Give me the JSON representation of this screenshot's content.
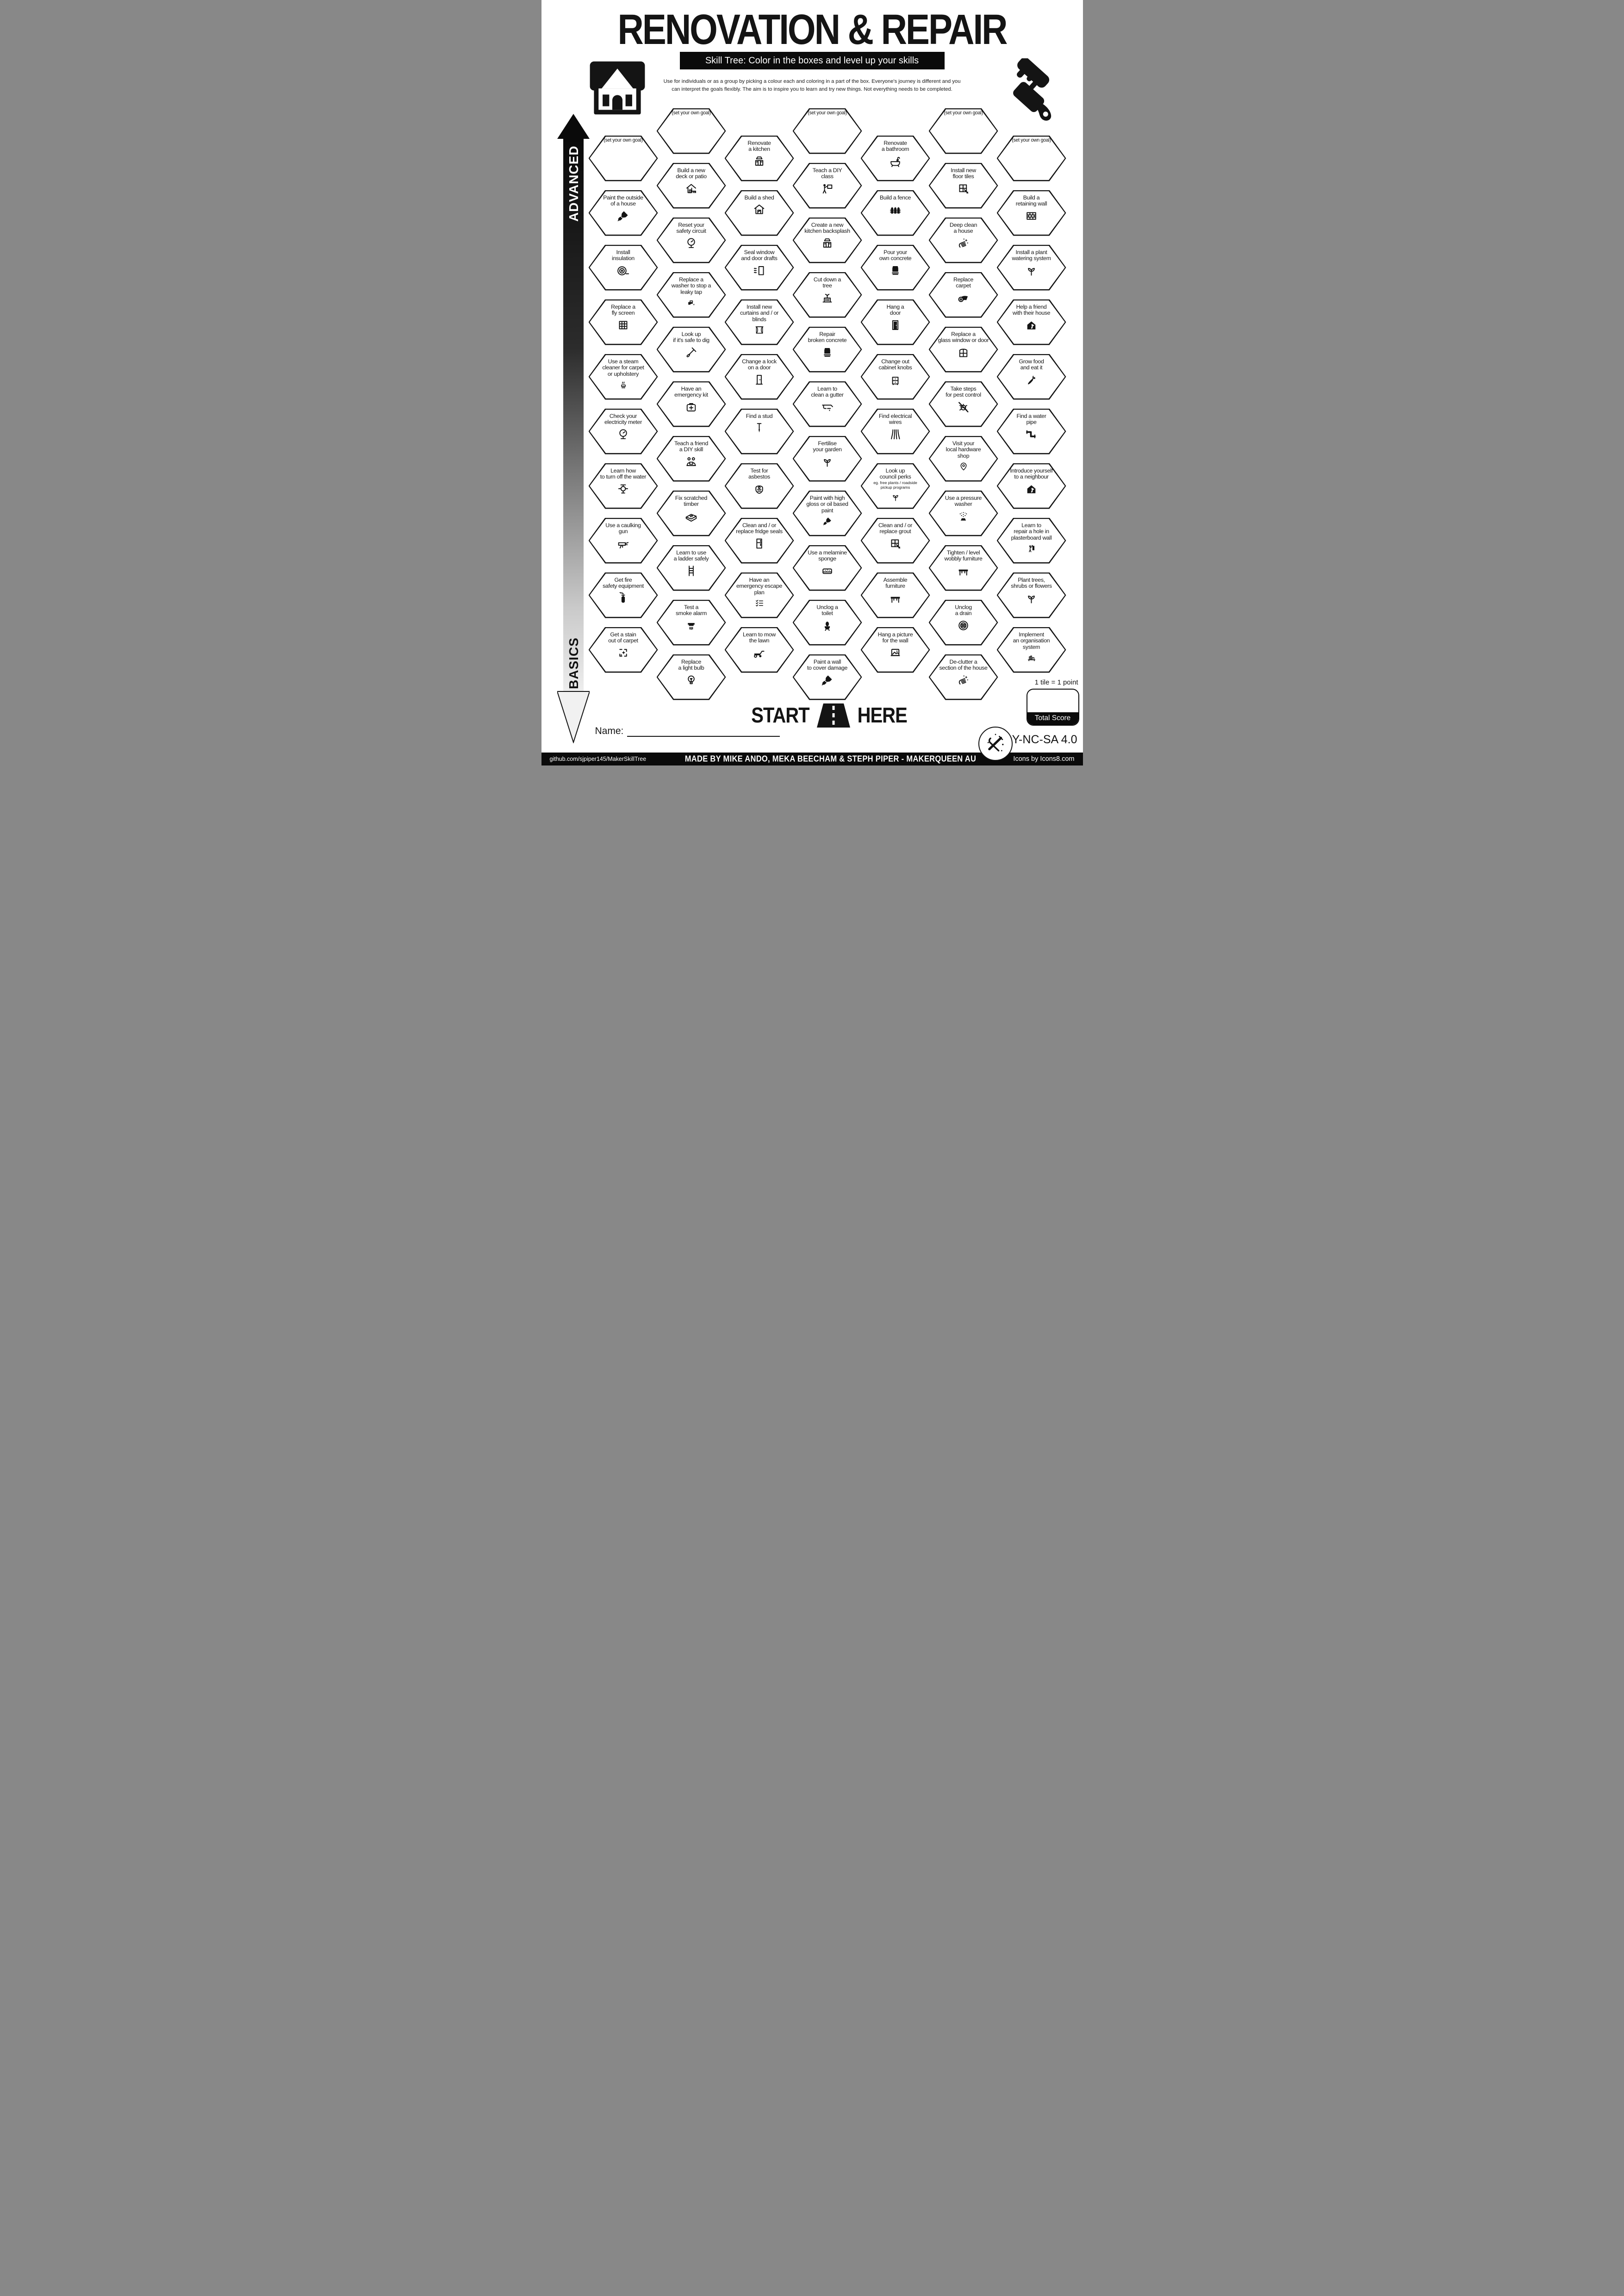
{
  "colors": {
    "ink": "#141414",
    "paper": "#ffffff"
  },
  "header": {
    "title": "RENOVATION & REPAIR",
    "subtitle": "Skill Tree:  Color in the boxes and level up your skills",
    "description": "Use for individuals or as a group by picking a colour each and coloring in a part of the box.  Everyone's journey is different and you can interpret the goals flexibly.  The aim is to inspire you to learn and try new things. Not everything needs to be completed."
  },
  "decorations": {
    "top_left_icon": "house",
    "top_right_icon": "paint-brush",
    "start_icon": "road",
    "license_badge_icon": "crossed-tools"
  },
  "axis": {
    "top_label": "ADVANCED",
    "bottom_label": "BASICS"
  },
  "start_marker": {
    "left": "START",
    "right": "HERE"
  },
  "name_field": {
    "label": "Name:",
    "value": ""
  },
  "scoring": {
    "note": "1 tile = 1 point",
    "box_label": "Total Score",
    "value": ""
  },
  "license": {
    "text": "CC BY-NC-SA 4.0"
  },
  "footer": {
    "left": "github.com/sjpiper145/MakerSkillTree",
    "center": "MADE BY MIKE ANDO, MEKA BEECHAM & STEPH PIPER  -  MAKERQUEEN AU",
    "right": "Icons by Icons8.com"
  },
  "skill_tree": {
    "columns": [
      [
        {
          "goal": true,
          "label": "(set your own goal)"
        },
        {
          "label": "Paint the outside\nof a house",
          "icon": "paint-brush"
        },
        {
          "label": "Install\ninsulation",
          "icon": "insulation-roll"
        },
        {
          "label": "Replace a\nfly screen",
          "icon": "fly-screen"
        },
        {
          "label": "Use a steam\ncleaner for carpet\nor upholstery",
          "icon": "steam-cleaner"
        },
        {
          "label": "Check your\nelectricity meter",
          "icon": "meter-gauge"
        },
        {
          "label": "Learn how\nto turn off the water",
          "icon": "water-valve"
        },
        {
          "label": "Use a caulking\ngun",
          "icon": "caulking-gun"
        },
        {
          "label": "Get fire\nsafety equipment",
          "icon": "fire-extinguisher"
        },
        {
          "label": "Get a stain\nout of carpet",
          "icon": "sparkle-clean"
        }
      ],
      [
        {
          "goal": true,
          "label": "(set your own goal)"
        },
        {
          "label": "Build a new\ndeck or patio",
          "icon": "house-deck"
        },
        {
          "label": "Reset your\nsafety circuit",
          "icon": "meter-gauge"
        },
        {
          "label": "Replace a\nwasher to stop a\nleaky tap",
          "icon": "tap-drip"
        },
        {
          "label": "Look up\nif it's safe to dig",
          "icon": "shovel"
        },
        {
          "label": "Have an\nemergency kit",
          "icon": "first-aid-kit"
        },
        {
          "label": "Teach a friend\na DIY skill",
          "icon": "friends-laptop"
        },
        {
          "label": "Fix scratched\ntimber",
          "icon": "timber-plank"
        },
        {
          "label": "Learn to use\na ladder safely",
          "icon": "ladder"
        },
        {
          "label": "Test a\nsmoke alarm",
          "icon": "smoke-alarm"
        },
        {
          "label": "Replace\na light bulb",
          "icon": "light-bulb"
        }
      ],
      [
        {
          "label": "Renovate\na kitchen",
          "icon": "kitchen-cabinet"
        },
        {
          "label": "Build a shed",
          "icon": "shed"
        },
        {
          "label": "Seal window\nand door drafts",
          "icon": "door-draft"
        },
        {
          "label": "Install new\ncurtains and / or\nblinds",
          "icon": "curtains"
        },
        {
          "label": "Change a lock\non a door",
          "icon": "door-lock"
        },
        {
          "label": "Find a stud",
          "icon": "nail"
        },
        {
          "label": "Test for\nasbestos",
          "icon": "respirator"
        },
        {
          "label": "Clean and / or\nreplace fridge seals",
          "icon": "fridge"
        },
        {
          "label": "Have an\nemergency escape\nplan",
          "icon": "checklist"
        },
        {
          "label": "Learn to mow\nthe lawn",
          "icon": "lawn-mower"
        }
      ],
      [
        {
          "goal": true,
          "label": "(set your own goal)"
        },
        {
          "label": "Teach a DIY\nclass",
          "icon": "presenter"
        },
        {
          "label": "Create a new\nkitchen backsplash",
          "icon": "kitchen-cabinet"
        },
        {
          "label": "Cut down a\ntree",
          "icon": "tree-stump"
        },
        {
          "label": "Repair\nbroken concrete",
          "icon": "cement-bag"
        },
        {
          "label": "Learn to\nclean a gutter",
          "icon": "gutter"
        },
        {
          "label": "Fertilise\nyour garden",
          "icon": "seedling"
        },
        {
          "label": "Paint with high\ngloss or oil based\npaint",
          "icon": "paint-brush"
        },
        {
          "label": "Use a melamine\nsponge",
          "icon": "sponge"
        },
        {
          "label": "Unclog a\ntoilet",
          "icon": "toilet"
        },
        {
          "label": "Paint a wall\nto cover damage",
          "icon": "paint-brush"
        }
      ],
      [
        {
          "label": "Renovate\na bathroom",
          "icon": "bathtub"
        },
        {
          "label": "Build a fence",
          "icon": "fence"
        },
        {
          "label": "Pour your\nown concrete",
          "icon": "cement-bag"
        },
        {
          "label": "Hang a\ndoor",
          "icon": "door"
        },
        {
          "label": "Change out\ncabinet knobs",
          "icon": "drawer-unit"
        },
        {
          "label": "Find electrical\nwires",
          "icon": "electrical-wires"
        },
        {
          "label": "Look up\ncouncil perks",
          "note": "eg. free plants / roadside\npickup programs",
          "icon": "seedling"
        },
        {
          "label": "Clean and / or\nreplace grout",
          "icon": "tile-trowel"
        },
        {
          "label": "Assemble\nfurniture",
          "icon": "table"
        },
        {
          "label": "Hang a picture\nfor the wall",
          "icon": "picture-frame"
        }
      ],
      [
        {
          "goal": true,
          "label": "(set your own goal)"
        },
        {
          "label": "Install new\nfloor tiles",
          "icon": "tile-trowel"
        },
        {
          "label": "Deep clean\na house",
          "icon": "cleaning-hand"
        },
        {
          "label": "Replace\ncarpet",
          "icon": "carpet-roll"
        },
        {
          "label": "Replace a\nglass window or door",
          "icon": "arched-window"
        },
        {
          "label": "Take steps\nfor pest control",
          "icon": "bug-slash"
        },
        {
          "label": "Visit your\nlocal hardware\nshop",
          "icon": "map-pin"
        },
        {
          "label": "Use a pressure\nwasher",
          "icon": "pressure-spray"
        },
        {
          "label": "Tighten / level\nwobbly furniture",
          "icon": "table"
        },
        {
          "label": "Unclog\na drain",
          "icon": "drain"
        },
        {
          "label": "De-clutter a\nsection of the house",
          "icon": "cleaning-hand"
        }
      ],
      [
        {
          "goal": true,
          "label": "(set your own goal)"
        },
        {
          "label": "Build a\nretaining wall",
          "icon": "brick-wall"
        },
        {
          "label": "Install a plant\nwatering system",
          "icon": "seedling"
        },
        {
          "label": "Help a friend\nwith their house",
          "icon": "house-person"
        },
        {
          "label": "Grow food\nand eat it",
          "icon": "carrot"
        },
        {
          "label": "Find a water\npipe",
          "icon": "water-pipe"
        },
        {
          "label": "Introduce yourself\nto a neighbour",
          "icon": "house-person"
        },
        {
          "label": "Learn to\nrepair a hole in\nplasterboard wall",
          "icon": "wall-patch"
        },
        {
          "label": "Plant trees,\nshrubs or flowers",
          "icon": "seedling"
        },
        {
          "label": "Implement\nan organisation\nsystem",
          "icon": "shelf-unit"
        }
      ]
    ]
  }
}
